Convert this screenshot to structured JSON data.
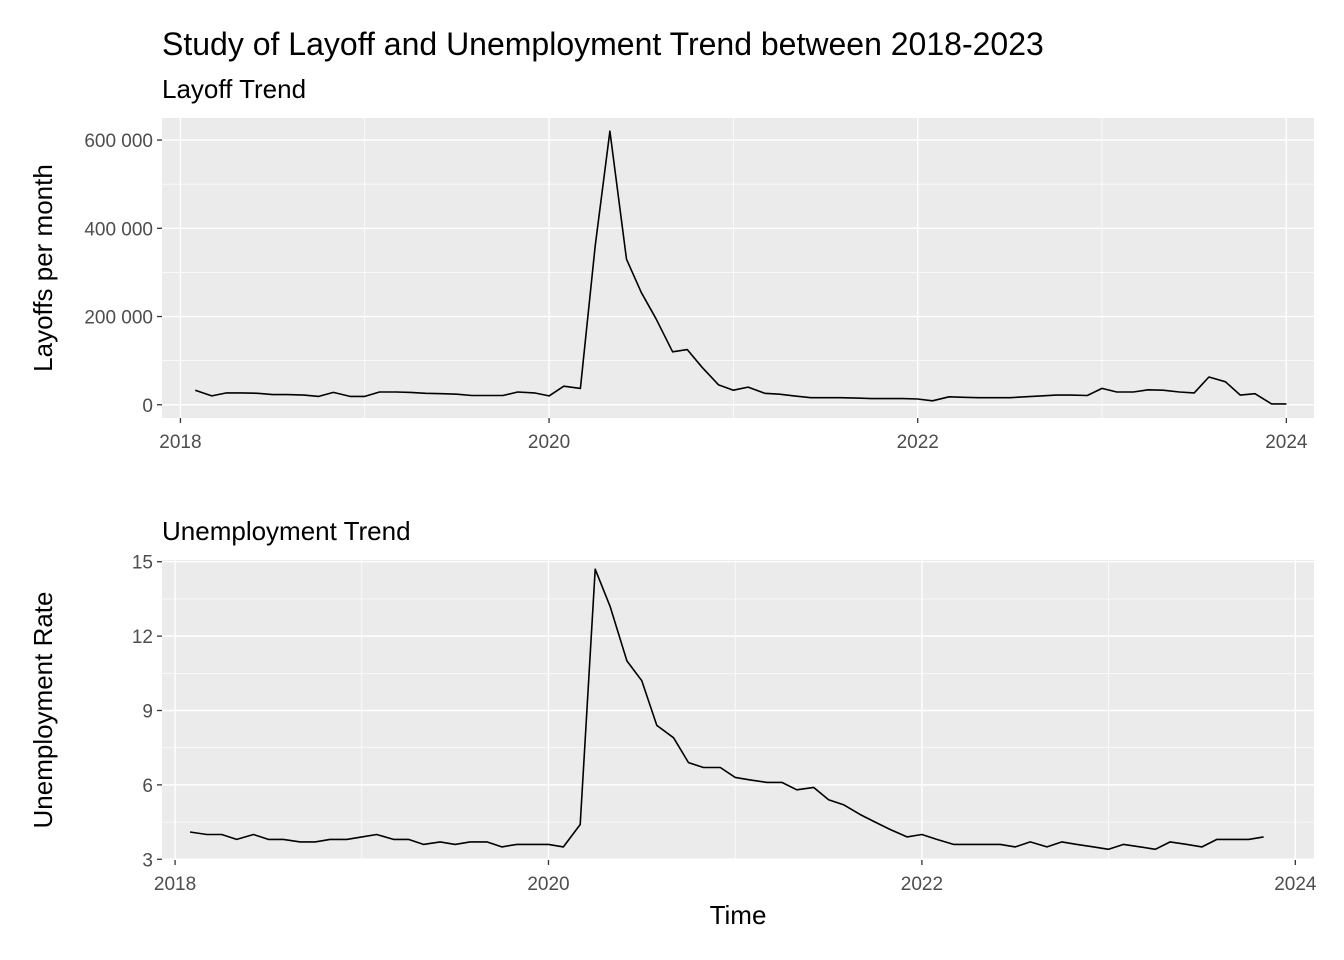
{
  "title": "Study of Layoff and Unemployment Trend between 2018-2023",
  "colors": {
    "panel": "#ebebeb",
    "grid": "#ffffff",
    "line": "#000000",
    "tick_text": "#4d4d4d"
  },
  "chart_data": [
    {
      "type": "line",
      "title": "Layoff Trend",
      "xlabel": "",
      "ylabel": "Layoffs per month",
      "xlim": [
        2017.9,
        2024.15
      ],
      "ylim": [
        -30000,
        650000
      ],
      "xticks": [
        2018,
        2020,
        2022,
        2024
      ],
      "xtick_labels": [
        "2018",
        "2020",
        "2022",
        "2024"
      ],
      "yticks": [
        0,
        200000,
        400000,
        600000
      ],
      "ytick_labels": [
        "0",
        "200 000",
        "400 000",
        "600 000"
      ],
      "grid": true,
      "x": [
        2018.08,
        2018.17,
        2018.25,
        2018.33,
        2018.42,
        2018.5,
        2018.58,
        2018.67,
        2018.75,
        2018.83,
        2018.92,
        2019.0,
        2019.08,
        2019.17,
        2019.25,
        2019.33,
        2019.42,
        2019.5,
        2019.58,
        2019.67,
        2019.75,
        2019.83,
        2019.92,
        2020.0,
        2020.08,
        2020.17,
        2020.25,
        2020.33,
        2020.42,
        2020.5,
        2020.58,
        2020.67,
        2020.75,
        2020.83,
        2020.92,
        2021.0,
        2021.08,
        2021.17,
        2021.25,
        2021.33,
        2021.42,
        2021.5,
        2021.58,
        2021.67,
        2021.75,
        2021.83,
        2021.92,
        2022.0,
        2022.08,
        2022.17,
        2022.25,
        2022.33,
        2022.42,
        2022.5,
        2022.58,
        2022.67,
        2022.75,
        2022.83,
        2022.92,
        2023.0,
        2023.08,
        2023.17,
        2023.25,
        2023.33,
        2023.42,
        2023.5,
        2023.58,
        2023.67,
        2023.75,
        2023.83,
        2023.92,
        2024.0
      ],
      "y": [
        33000,
        20000,
        27000,
        27000,
        26000,
        23000,
        23000,
        22000,
        19000,
        28000,
        19000,
        19000,
        29000,
        29000,
        28000,
        26000,
        25000,
        24000,
        21000,
        21000,
        21000,
        29000,
        27000,
        20000,
        42000,
        37000,
        360000,
        620000,
        330000,
        255000,
        195000,
        120000,
        125000,
        85000,
        45000,
        33000,
        40000,
        26000,
        24000,
        20000,
        16000,
        16000,
        16000,
        15000,
        14000,
        14000,
        14000,
        13000,
        9000,
        18000,
        17000,
        16000,
        16000,
        16000,
        18000,
        20000,
        22000,
        22000,
        21000,
        37000,
        29000,
        29000,
        34000,
        33000,
        29000,
        27000,
        63000,
        52000,
        22000,
        25000,
        2000,
        2000
      ]
    },
    {
      "type": "line",
      "title": "Unemployment Trend",
      "xlabel": "Time",
      "ylabel": "Unemployment Rate",
      "xlim": [
        2017.93,
        2024.1
      ],
      "ylim": [
        2.97,
        15.07
      ],
      "xticks": [
        2018,
        2020,
        2022,
        2024
      ],
      "xtick_labels": [
        "2018",
        "2020",
        "2022",
        "2024"
      ],
      "yticks": [
        3,
        6,
        9,
        12,
        15
      ],
      "ytick_labels": [
        "3",
        "6",
        "9",
        "12",
        "15"
      ],
      "grid": true,
      "x": [
        2018.08,
        2018.17,
        2018.25,
        2018.33,
        2018.42,
        2018.5,
        2018.58,
        2018.67,
        2018.75,
        2018.83,
        2018.92,
        2019.0,
        2019.08,
        2019.17,
        2019.25,
        2019.33,
        2019.42,
        2019.5,
        2019.58,
        2019.67,
        2019.75,
        2019.83,
        2019.92,
        2020.0,
        2020.08,
        2020.17,
        2020.25,
        2020.33,
        2020.42,
        2020.5,
        2020.58,
        2020.67,
        2020.75,
        2020.83,
        2020.92,
        2021.0,
        2021.08,
        2021.17,
        2021.25,
        2021.33,
        2021.42,
        2021.5,
        2021.58,
        2021.67,
        2021.75,
        2021.83,
        2021.92,
        2022.0,
        2022.08,
        2022.17,
        2022.25,
        2022.33,
        2022.42,
        2022.5,
        2022.58,
        2022.67,
        2022.75,
        2022.83,
        2022.92,
        2023.0,
        2023.08,
        2023.17,
        2023.25,
        2023.33,
        2023.42,
        2023.5,
        2023.58,
        2023.67,
        2023.75,
        2023.83
      ],
      "y": [
        4.1,
        4.0,
        4.0,
        3.8,
        4.0,
        3.8,
        3.8,
        3.7,
        3.7,
        3.8,
        3.8,
        3.9,
        4.0,
        3.8,
        3.8,
        3.6,
        3.7,
        3.6,
        3.7,
        3.7,
        3.5,
        3.6,
        3.6,
        3.6,
        3.5,
        4.4,
        14.7,
        13.2,
        11.0,
        10.2,
        8.4,
        7.9,
        6.9,
        6.7,
        6.7,
        6.3,
        6.2,
        6.1,
        6.1,
        5.8,
        5.9,
        5.4,
        5.2,
        4.8,
        4.5,
        4.2,
        3.9,
        4.0,
        3.8,
        3.6,
        3.6,
        3.6,
        3.6,
        3.5,
        3.7,
        3.5,
        3.7,
        3.6,
        3.5,
        3.4,
        3.6,
        3.5,
        3.4,
        3.7,
        3.6,
        3.5,
        3.8,
        3.8,
        3.8,
        3.9
      ]
    }
  ]
}
